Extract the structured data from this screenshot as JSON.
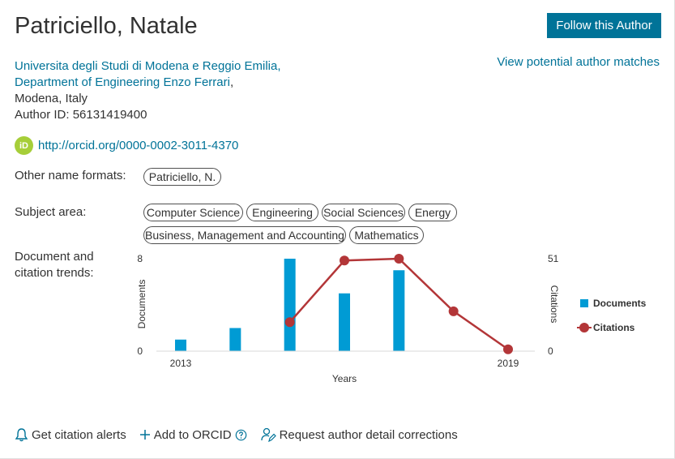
{
  "author": {
    "name": "Patriciello, Natale",
    "follow_label": "Follow this Author",
    "matches_label": "View potential author matches",
    "affiliation_line1": "Universita degli Studi di Modena e Reggio Emilia,",
    "affiliation_line2": "Department of Engineering Enzo Ferrari",
    "affiliation_line2_suffix": ",",
    "location": "Modena, Italy",
    "author_id": "Author ID: 56131419400",
    "orcid_badge": "iD",
    "orcid_url": "http://orcid.org/0000-0002-3011-4370"
  },
  "other_names": {
    "label": "Other name formats:",
    "items": [
      "Patriciello, N."
    ]
  },
  "subject_area": {
    "label": "Subject area:",
    "items": [
      "Computer Science",
      "Engineering",
      "Social Sciences",
      "Energy",
      "Business, Management and Accounting",
      "Mathematics"
    ]
  },
  "trends": {
    "label_line1": "Document and",
    "label_line2": "citation trends:"
  },
  "chart_data": {
    "type": "bar",
    "x": [
      2013,
      2014,
      2015,
      2016,
      2017,
      2018,
      2019
    ],
    "x_tick_labels": [
      "2013",
      "2019"
    ],
    "xlabel": "Years",
    "series": [
      {
        "name": "Documents",
        "type": "bar",
        "axis": "left",
        "values": [
          1,
          2,
          8,
          5,
          7,
          null,
          null
        ],
        "color": "#009bd4"
      },
      {
        "name": "Citations",
        "type": "line",
        "axis": "right",
        "values": [
          null,
          null,
          16,
          50,
          51,
          22,
          1
        ],
        "color": "#b33638"
      }
    ],
    "y_left": {
      "label": "Documents",
      "range": [
        0,
        8
      ],
      "ticks": [
        "0",
        "8"
      ]
    },
    "y_right": {
      "label": "Citations",
      "range": [
        0,
        51
      ],
      "ticks": [
        "0",
        "51"
      ]
    },
    "grid": false,
    "legend": "right"
  },
  "actions": {
    "alerts_label": "Get citation alerts",
    "orcid_label": "Add to ORCID",
    "corrections_label": "Request author detail corrections"
  }
}
